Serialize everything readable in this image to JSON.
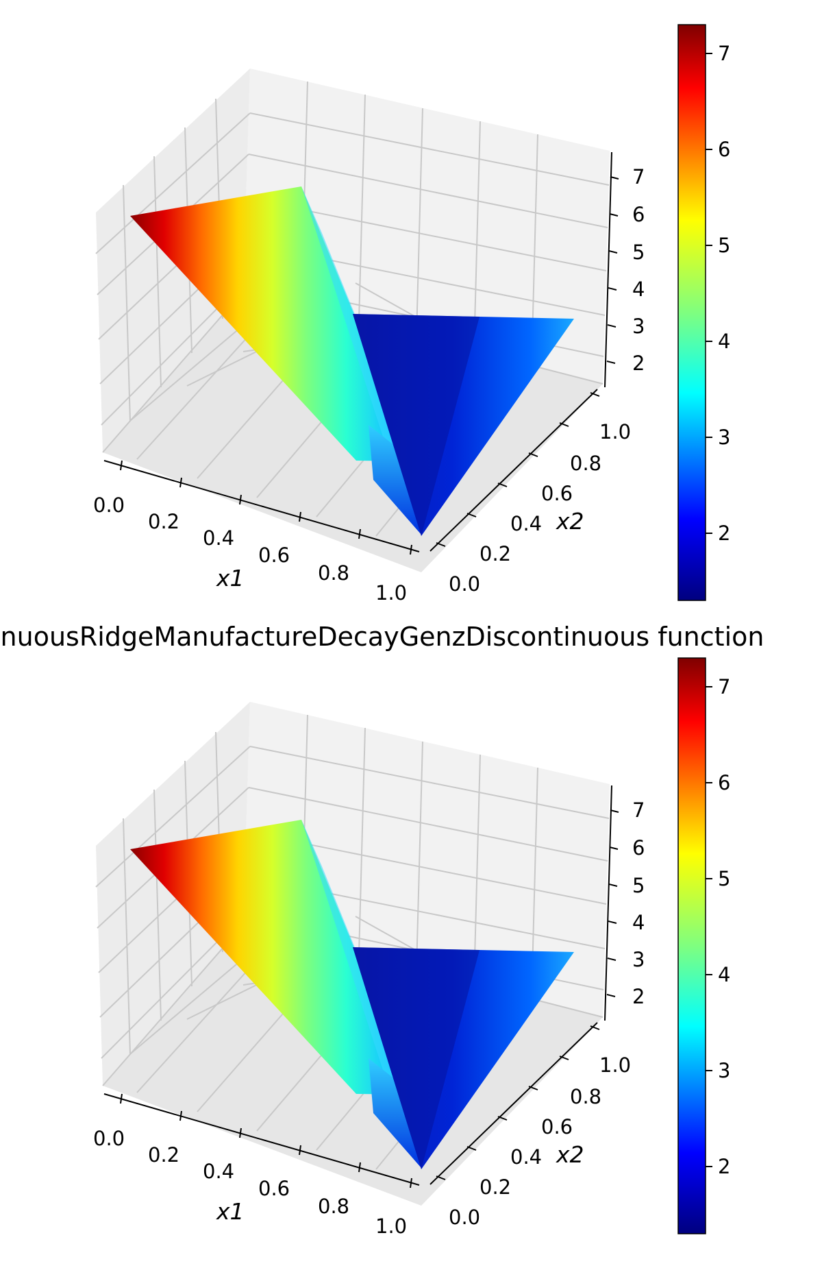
{
  "title": "inuousRidgeManufactureDecayGenzDiscontinuous function",
  "chart_data": [
    {
      "type": "surface3d",
      "name": "top-panel",
      "colormap": "jet",
      "xlabel": "x1",
      "ylabel": "x2",
      "xticks": [
        "0.0",
        "0.2",
        "0.4",
        "0.6",
        "0.8",
        "1.0"
      ],
      "yticks": [
        "0.0",
        "0.2",
        "0.4",
        "0.6",
        "0.8",
        "1.0"
      ],
      "zticks": [
        "2",
        "3",
        "4",
        "5",
        "6",
        "7"
      ],
      "xlim": [
        0,
        1
      ],
      "ylim": [
        0,
        1
      ],
      "zlim": [
        1.3,
        7.3
      ],
      "colorbar": {
        "ticks": [
          "2",
          "3",
          "4",
          "5",
          "6",
          "7"
        ],
        "range": [
          1.3,
          7.3
        ]
      },
      "surface_vertices": [
        {
          "label": "x1=0, x2=1",
          "x1": 0.0,
          "x2": 1.0,
          "z": 7.1
        },
        {
          "label": "x1=1, x2=1",
          "x1": 1.0,
          "x2": 1.0,
          "z": 3.3
        },
        {
          "label": "x1=1, x2=0 (ridge low)",
          "x1": 1.0,
          "x2": 0.0,
          "z": 2.8
        },
        {
          "label": "x1=1, x2=0 (floor)",
          "x1": 1.0,
          "x2": 0.0,
          "z": 1.3
        },
        {
          "label": "x1=1, x2=1 (floor)",
          "x1": 1.0,
          "x2": 1.0,
          "z": 1.5
        },
        {
          "label": "x1=0, x2=1 (floor edge)",
          "x1": 0.0,
          "x2": 1.0,
          "z": 2.6
        }
      ]
    },
    {
      "type": "surface3d",
      "name": "bottom-panel",
      "colormap": "jet",
      "xlabel": "x1",
      "ylabel": "x2",
      "xticks": [
        "0.0",
        "0.2",
        "0.4",
        "0.6",
        "0.8",
        "1.0"
      ],
      "yticks": [
        "0.0",
        "0.2",
        "0.4",
        "0.6",
        "0.8",
        "1.0"
      ],
      "zticks": [
        "2",
        "3",
        "4",
        "5",
        "6",
        "7"
      ],
      "xlim": [
        0,
        1
      ],
      "ylim": [
        0,
        1
      ],
      "zlim": [
        1.3,
        7.3
      ],
      "colorbar": {
        "ticks": [
          "2",
          "3",
          "4",
          "5",
          "6",
          "7"
        ],
        "range": [
          1.3,
          7.3
        ]
      },
      "surface_vertices": [
        {
          "label": "x1=0, x2=1",
          "x1": 0.0,
          "x2": 1.0,
          "z": 7.1
        },
        {
          "label": "x1=1, x2=1",
          "x1": 1.0,
          "x2": 1.0,
          "z": 3.3
        },
        {
          "label": "x1=1, x2=0 (ridge low)",
          "x1": 1.0,
          "x2": 0.0,
          "z": 2.8
        },
        {
          "label": "x1=1, x2=0 (floor)",
          "x1": 1.0,
          "x2": 0.0,
          "z": 1.3
        },
        {
          "label": "x1=1, x2=1 (floor)",
          "x1": 1.0,
          "x2": 1.0,
          "z": 1.5
        },
        {
          "label": "x1=0, x2=1 (floor edge)",
          "x1": 0.0,
          "x2": 1.0,
          "z": 2.6
        }
      ]
    }
  ],
  "colors": {
    "pane": "#f2f2f2",
    "pane_dark": "#e9e9e9",
    "grid": "#c8c8c8",
    "axis": "#000000"
  }
}
